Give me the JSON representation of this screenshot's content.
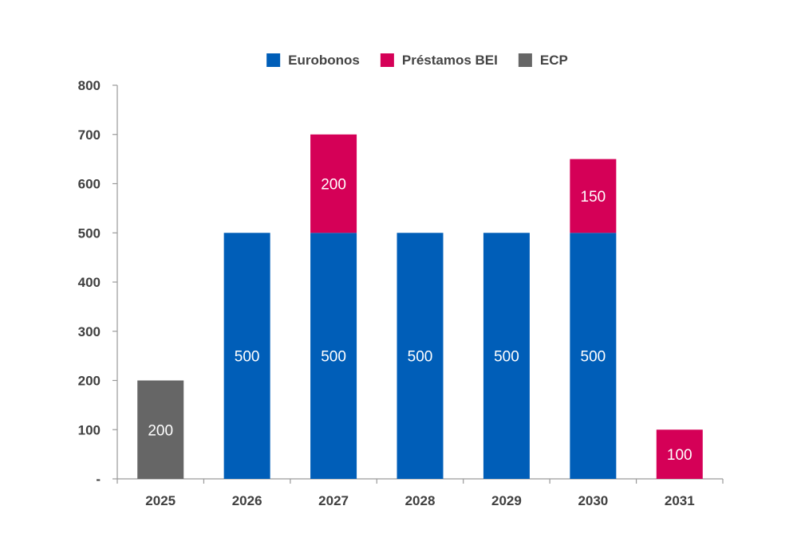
{
  "chart_data": {
    "type": "bar",
    "stacked": true,
    "title": "",
    "xlabel": "",
    "ylabel": "",
    "categories": [
      "2025",
      "2026",
      "2027",
      "2028",
      "2029",
      "2030",
      "2031"
    ],
    "series": [
      {
        "name": "ECP",
        "color": "#666666",
        "values": [
          200,
          0,
          0,
          0,
          0,
          0,
          0
        ]
      },
      {
        "name": "Eurobonos",
        "color": "#005eb8",
        "values": [
          0,
          500,
          500,
          500,
          500,
          500,
          0
        ]
      },
      {
        "name": "Préstamos BEI",
        "color": "#d50057",
        "values": [
          0,
          0,
          200,
          0,
          0,
          150,
          100
        ]
      }
    ],
    "legend_order": [
      "Eurobonos",
      "Préstamos BEI",
      "ECP"
    ],
    "legend_position": "top",
    "ylim": [
      0,
      800
    ],
    "yticks": [
      0,
      100,
      200,
      300,
      400,
      500,
      600,
      700,
      800
    ],
    "ytick_labels": [
      "-",
      "100",
      "200",
      "300",
      "400",
      "500",
      "600",
      "700",
      "800"
    ],
    "grid": false
  }
}
